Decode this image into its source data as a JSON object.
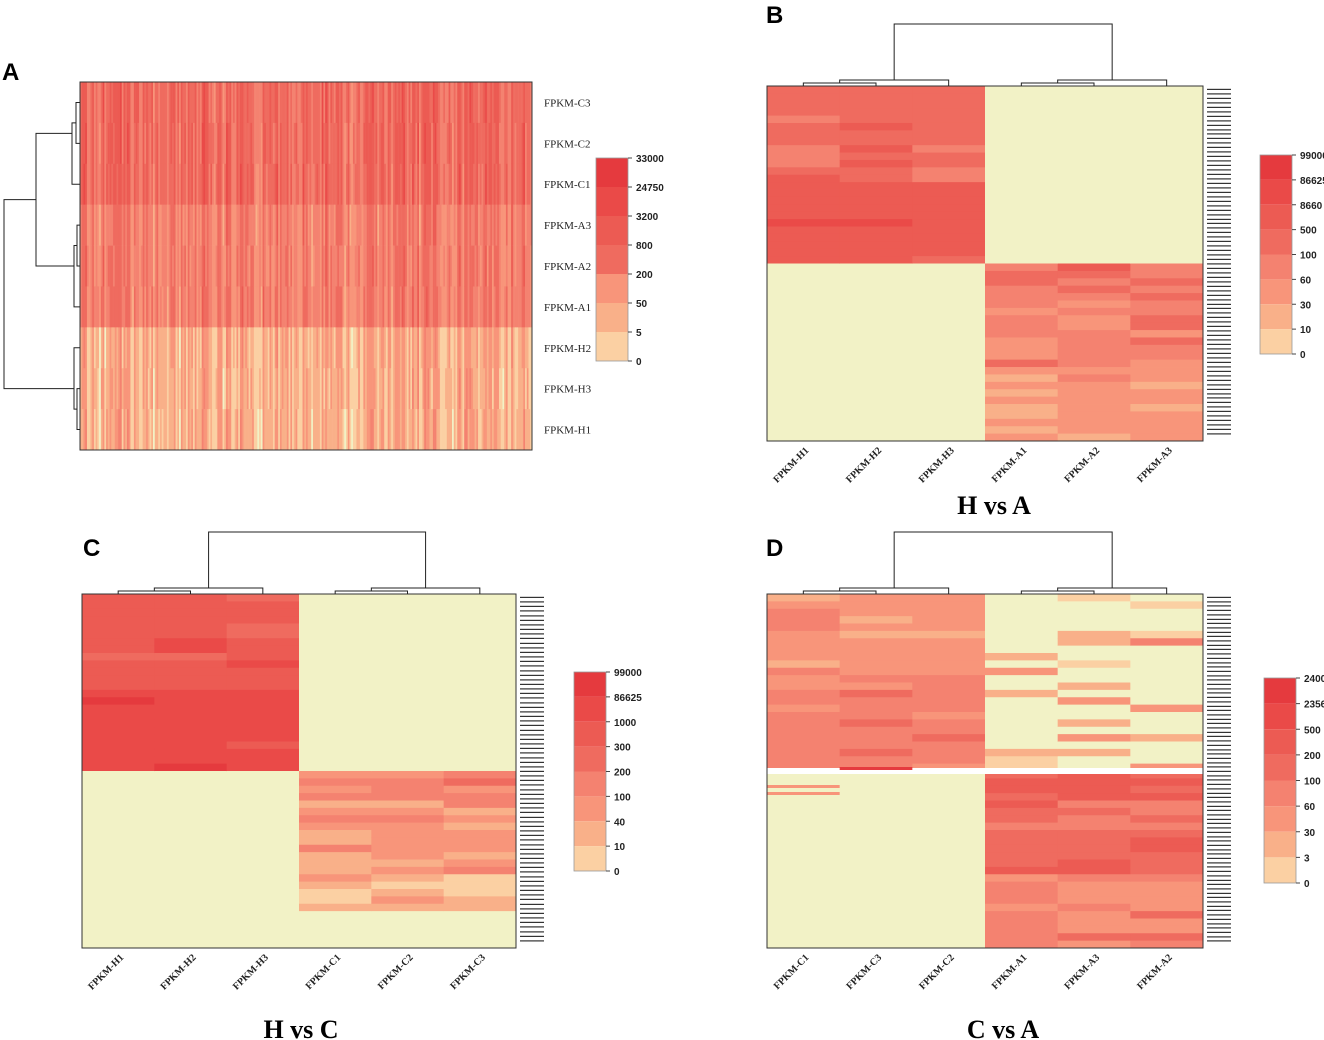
{
  "palette": [
    "#f2f2c6",
    "#fbd0a3",
    "#f9b089",
    "#f8957a",
    "#f48270",
    "#ef6b5f",
    "#ec5b53",
    "#ea4a48",
    "#e53a3e"
  ],
  "chart_data": [
    {
      "panel": "A",
      "type": "heatmap",
      "title": "",
      "rows": [
        "FPKM-C3",
        "FPKM-C2",
        "FPKM-C1",
        "FPKM-A3",
        "FPKM-A2",
        "FPKM-A1",
        "FPKM-H2",
        "FPKM-H3",
        "FPKM-H1"
      ],
      "row_dendrogram": "left",
      "group_levels": [
        5,
        4,
        2
      ],
      "colorbar_ticks": [
        "33000",
        "24750",
        "3200",
        "800",
        "200",
        "50",
        "5",
        "0"
      ]
    },
    {
      "panel": "B",
      "type": "heatmap",
      "title": "H vs A",
      "columns": [
        "FPKM-H1",
        "FPKM-H2",
        "FPKM-H3",
        "FPKM-A1",
        "FPKM-A2",
        "FPKM-A3"
      ],
      "col_dendrogram": "top",
      "blocks": [
        {
          "rows": "top",
          "cols": [
            "FPKM-H1",
            "FPKM-H2",
            "FPKM-H3"
          ],
          "level": 5
        },
        {
          "rows": "top",
          "cols": [
            "FPKM-A1",
            "FPKM-A2",
            "FPKM-A3"
          ],
          "level": 0
        },
        {
          "rows": "bottom",
          "cols": [
            "FPKM-H1",
            "FPKM-H2",
            "FPKM-H3"
          ],
          "level": 0
        },
        {
          "rows": "bottom",
          "cols": [
            "FPKM-A1",
            "FPKM-A2",
            "FPKM-A3"
          ],
          "level": 4
        }
      ],
      "colorbar_ticks": [
        "99000",
        "86625",
        "8660",
        "500",
        "100",
        "60",
        "30",
        "10",
        "0"
      ]
    },
    {
      "panel": "C",
      "type": "heatmap",
      "title": "H vs C",
      "columns": [
        "FPKM-H1",
        "FPKM-H2",
        "FPKM-H3",
        "FPKM-C1",
        "FPKM-C2",
        "FPKM-C3"
      ],
      "col_dendrogram": "top",
      "blocks": [
        {
          "rows": "top",
          "cols": [
            "FPKM-H1",
            "FPKM-H2",
            "FPKM-H3"
          ],
          "level": 6
        },
        {
          "rows": "top",
          "cols": [
            "FPKM-C1",
            "FPKM-C2",
            "FPKM-C3"
          ],
          "level": 0
        },
        {
          "rows": "bottom",
          "cols": [
            "FPKM-H1",
            "FPKM-H2",
            "FPKM-H3"
          ],
          "level": 0
        },
        {
          "rows": "bottom",
          "cols": [
            "FPKM-C1",
            "FPKM-C2",
            "FPKM-C3"
          ],
          "level": 3
        }
      ],
      "colorbar_ticks": [
        "99000",
        "86625",
        "1000",
        "300",
        "200",
        "100",
        "40",
        "10",
        "0"
      ]
    },
    {
      "panel": "D",
      "type": "heatmap",
      "title": "C vs A",
      "columns": [
        "FPKM-C1",
        "FPKM-C3",
        "FPKM-C2",
        "FPKM-A1",
        "FPKM-A3",
        "FPKM-A2"
      ],
      "col_dendrogram": "top",
      "blocks": [
        {
          "rows": "top",
          "cols": [
            "FPKM-C1",
            "FPKM-C3",
            "FPKM-C2"
          ],
          "level": 3
        },
        {
          "rows": "top",
          "cols": [
            "FPKM-A1",
            "FPKM-A3",
            "FPKM-A2"
          ],
          "level": 0
        },
        {
          "rows": "bottom",
          "cols": [
            "FPKM-C1",
            "FPKM-C3",
            "FPKM-C2"
          ],
          "level": 0
        },
        {
          "rows": "bottom",
          "cols": [
            "FPKM-A1",
            "FPKM-A3",
            "FPKM-A2"
          ],
          "level": 5
        }
      ],
      "colorbar_ticks": [
        "2400",
        "2356",
        "500",
        "200",
        "100",
        "60",
        "30",
        "3",
        "0"
      ]
    }
  ]
}
